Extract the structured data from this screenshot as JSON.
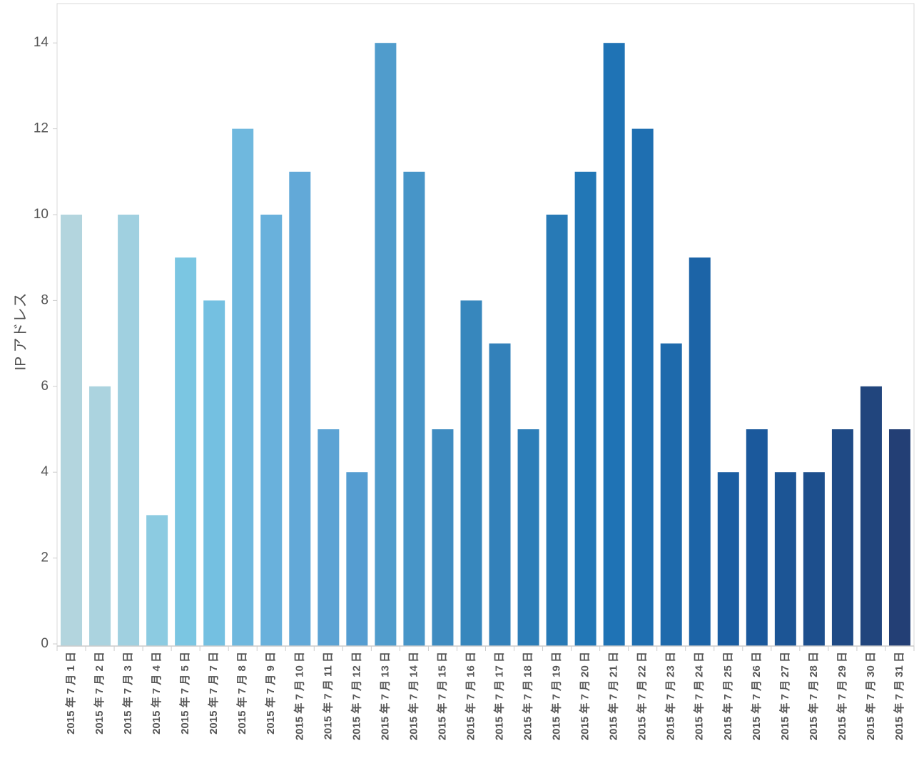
{
  "chart_data": {
    "type": "bar",
    "title": "",
    "xlabel": "",
    "ylabel": "IP アドレス",
    "ylim": [
      0,
      14
    ],
    "yticks": [
      0,
      2,
      4,
      6,
      8,
      10,
      12,
      14
    ],
    "grid": false,
    "legend": "none",
    "categories": [
      "2015 年 7 月 1 日",
      "2015 年 7 月 2 日",
      "2015 年 7 月 3 日",
      "2015 年 7 月 4 日",
      "2015 年 7 月 5 日",
      "2015 年 7 月 7 日",
      "2015 年 7 月 8 日",
      "2015 年 7 月 9 日",
      "2015 年 7 月 10 日",
      "2015 年 7 月 11 日",
      "2015 年 7 月 12 日",
      "2015 年 7 月 13 日",
      "2015 年 7 月 14 日",
      "2015 年 7 月 15 日",
      "2015 年 7 月 16 日",
      "2015 年 7 月 17 日",
      "2015 年 7 月 18 日",
      "2015 年 7 月 19 日",
      "2015 年 7 月 20 日",
      "2015 年 7 月 21 日",
      "2015 年 7 月 22 日",
      "2015 年 7 月 23 日",
      "2015 年 7 月 24 日",
      "2015 年 7 月 25 日",
      "2015 年 7 月 26 日",
      "2015 年 7 月 27 日",
      "2015 年 7 月 28 日",
      "2015 年 7 月 29 日",
      "2015 年 7 月 30 日",
      "2015 年 7 月 31 日"
    ],
    "values": [
      10,
      6,
      10,
      3,
      9,
      8,
      12,
      10,
      11,
      5,
      4,
      14,
      11,
      5,
      8,
      7,
      5,
      10,
      11,
      14,
      12,
      7,
      9,
      4,
      5,
      4,
      4,
      5,
      6,
      5
    ],
    "colors": [
      "#b3d5de",
      "#abd3df",
      "#a0d0e0",
      "#8ccbe1",
      "#7bc6e2",
      "#74c0e1",
      "#6fb8de",
      "#69b1dc",
      "#62a9d8",
      "#5ca3d4",
      "#559dd1",
      "#509ccc",
      "#4795c8",
      "#3f8cc1",
      "#3787bd",
      "#3381ba",
      "#2d7eb8",
      "#287ab6",
      "#2277b6",
      "#1f73b5",
      "#1f6fb1",
      "#1e6aac",
      "#1c64a7",
      "#1b5ea2",
      "#1b599c",
      "#1c5595",
      "#1d4f8d",
      "#1f4a85",
      "#21457d",
      "#233f75"
    ]
  }
}
